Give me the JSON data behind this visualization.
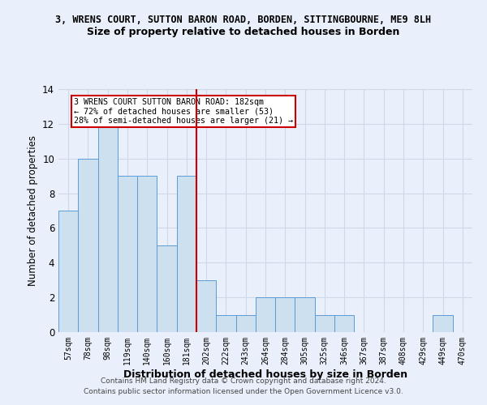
{
  "title_line1": "3, WRENS COURT, SUTTON BARON ROAD, BORDEN, SITTINGBOURNE, ME9 8LH",
  "title_line2": "Size of property relative to detached houses in Borden",
  "xlabel": "Distribution of detached houses by size in Borden",
  "ylabel": "Number of detached properties",
  "categories": [
    "57sqm",
    "78sqm",
    "98sqm",
    "119sqm",
    "140sqm",
    "160sqm",
    "181sqm",
    "202sqm",
    "222sqm",
    "243sqm",
    "264sqm",
    "284sqm",
    "305sqm",
    "325sqm",
    "346sqm",
    "367sqm",
    "387sqm",
    "408sqm",
    "429sqm",
    "449sqm",
    "470sqm"
  ],
  "values": [
    7,
    10,
    12,
    9,
    9,
    5,
    9,
    3,
    1,
    1,
    2,
    2,
    2,
    1,
    1,
    0,
    0,
    0,
    0,
    1,
    0
  ],
  "bar_color": "#cce0f0",
  "bar_edge_color": "#5b9bd5",
  "vline_x_index": 6,
  "vline_color": "#cc0000",
  "annotation_text": "3 WRENS COURT SUTTON BARON ROAD: 182sqm\n← 72% of detached houses are smaller (53)\n28% of semi-detached houses are larger (21) →",
  "annotation_box_color": "#ffffff",
  "annotation_box_edge_color": "#cc0000",
  "ylim": [
    0,
    14
  ],
  "yticks": [
    0,
    2,
    4,
    6,
    8,
    10,
    12,
    14
  ],
  "grid_color": "#d0d8e8",
  "background_color": "#eaf0fb",
  "footer_line1": "Contains HM Land Registry data © Crown copyright and database right 2024.",
  "footer_line2": "Contains public sector information licensed under the Open Government Licence v3.0."
}
